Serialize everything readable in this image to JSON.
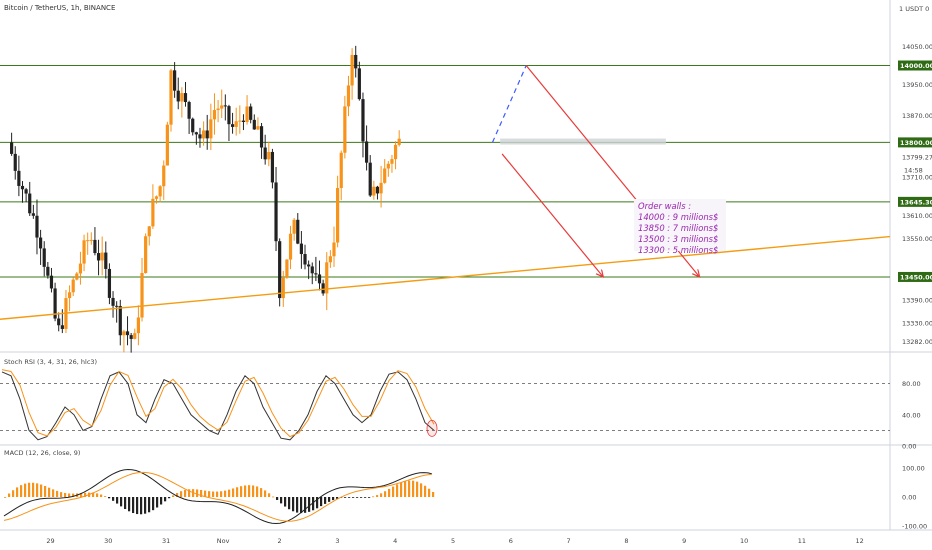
{
  "header": {
    "symbol_title": "Bitcoin / TetherUS, 1h, BINANCE"
  },
  "indicators": {
    "stoch_rsi_title": "Stoch RSI (3, 4, 31, 26, hlc3)",
    "macd_title": "MACD (12, 26, close, 9)"
  },
  "annotation": {
    "title": "Order walls :",
    "lines": [
      "14000 : 9 millions$",
      "13850 : 7 millions$",
      "13500 : 3 millions$",
      "13300 : 5 millions$"
    ]
  },
  "colors": {
    "bull": "#f7931a",
    "bear": "#222222",
    "level_line": "#3b7a1a",
    "trend_line": "#f39c12",
    "arrow": "#e83a3a",
    "projection": "#3d5afe",
    "stoch_k": "#333333",
    "stoch_d": "#f7931a",
    "macd_line": "#222222",
    "signal_line": "#f7931a",
    "annotation_text": "#9b27b0",
    "label_bg": "#2e6b14"
  },
  "chart_data": {
    "type": "candlestick",
    "symbol": "Bitcoin / TetherUS",
    "timeframe": "1h",
    "exchange": "BINANCE",
    "y_unit": "USDT",
    "y_axis_label": "1 USDT 0",
    "ylim": [
      13260,
      14160
    ],
    "y_ticks": [
      14050,
      13950,
      13870,
      13799.27,
      13710,
      13610,
      13550,
      13450,
      13390,
      13330,
      13282
    ],
    "y_tick_labels": [
      "14050.00",
      "13950.00",
      "13870.00",
      "13799.27",
      "13710.00",
      "13610.00",
      "13550.00",
      "13450.00",
      "13390.00",
      "13330.00",
      "13282.00"
    ],
    "price_labels": {
      "last_price": "13799.27",
      "countdown": "14:58"
    },
    "x_tick_labels": [
      "29",
      "30",
      "31",
      "Nov",
      "2",
      "3",
      "4",
      "5",
      "6",
      "7",
      "8",
      "9",
      "10",
      "11",
      "12"
    ],
    "horizontal_levels": [
      {
        "price": 14000,
        "label": "14000.00"
      },
      {
        "price": 13800,
        "label": "13800.00"
      },
      {
        "price": 13645.3,
        "label": "13645.30"
      },
      {
        "price": 13450,
        "label": "13450.00"
      }
    ],
    "trendline": {
      "start": {
        "x": "28 Oct 06:00",
        "price": 13340
      },
      "end": {
        "x": "12 Nov 12:00",
        "price": 13555
      }
    },
    "projections": [
      {
        "kind": "dashed",
        "from": {
          "x": "4 Nov 10:00",
          "price": 13800
        },
        "to": {
          "x": "5 Nov 00:00",
          "price": 14000
        }
      },
      {
        "kind": "arrow",
        "from": {
          "x": "5 Nov 00:00",
          "price": 14000
        },
        "to": {
          "x": "8 Nov 00:00",
          "price": 13450
        }
      },
      {
        "kind": "arrow",
        "from": {
          "x": "4 Nov 14:00",
          "price": 13770
        },
        "to": {
          "x": "6 Nov 08:00",
          "price": 13450
        }
      }
    ],
    "zone": {
      "from_x": "4 Nov 14:00",
      "to_x": "7 Nov 10:00",
      "price_high": 13810,
      "price_low": 13795
    },
    "candles_shown": "approx. 160 hourly candles, 28 Oct to 4 Nov (OHLC estimated, individual values not printed)",
    "stoch_rsi": {
      "title": "Stoch RSI (3, 4, 31, 26, hlc3)",
      "levels": [
        80,
        20
      ],
      "y_ticks": [
        "80.00",
        "40.00",
        "0.00"
      ],
      "k_last": 20,
      "d_last": 25
    },
    "macd": {
      "title": "MACD (12, 26, close, 9)",
      "y_ticks": [
        "100.00",
        "0.00",
        "-100.00"
      ]
    }
  }
}
